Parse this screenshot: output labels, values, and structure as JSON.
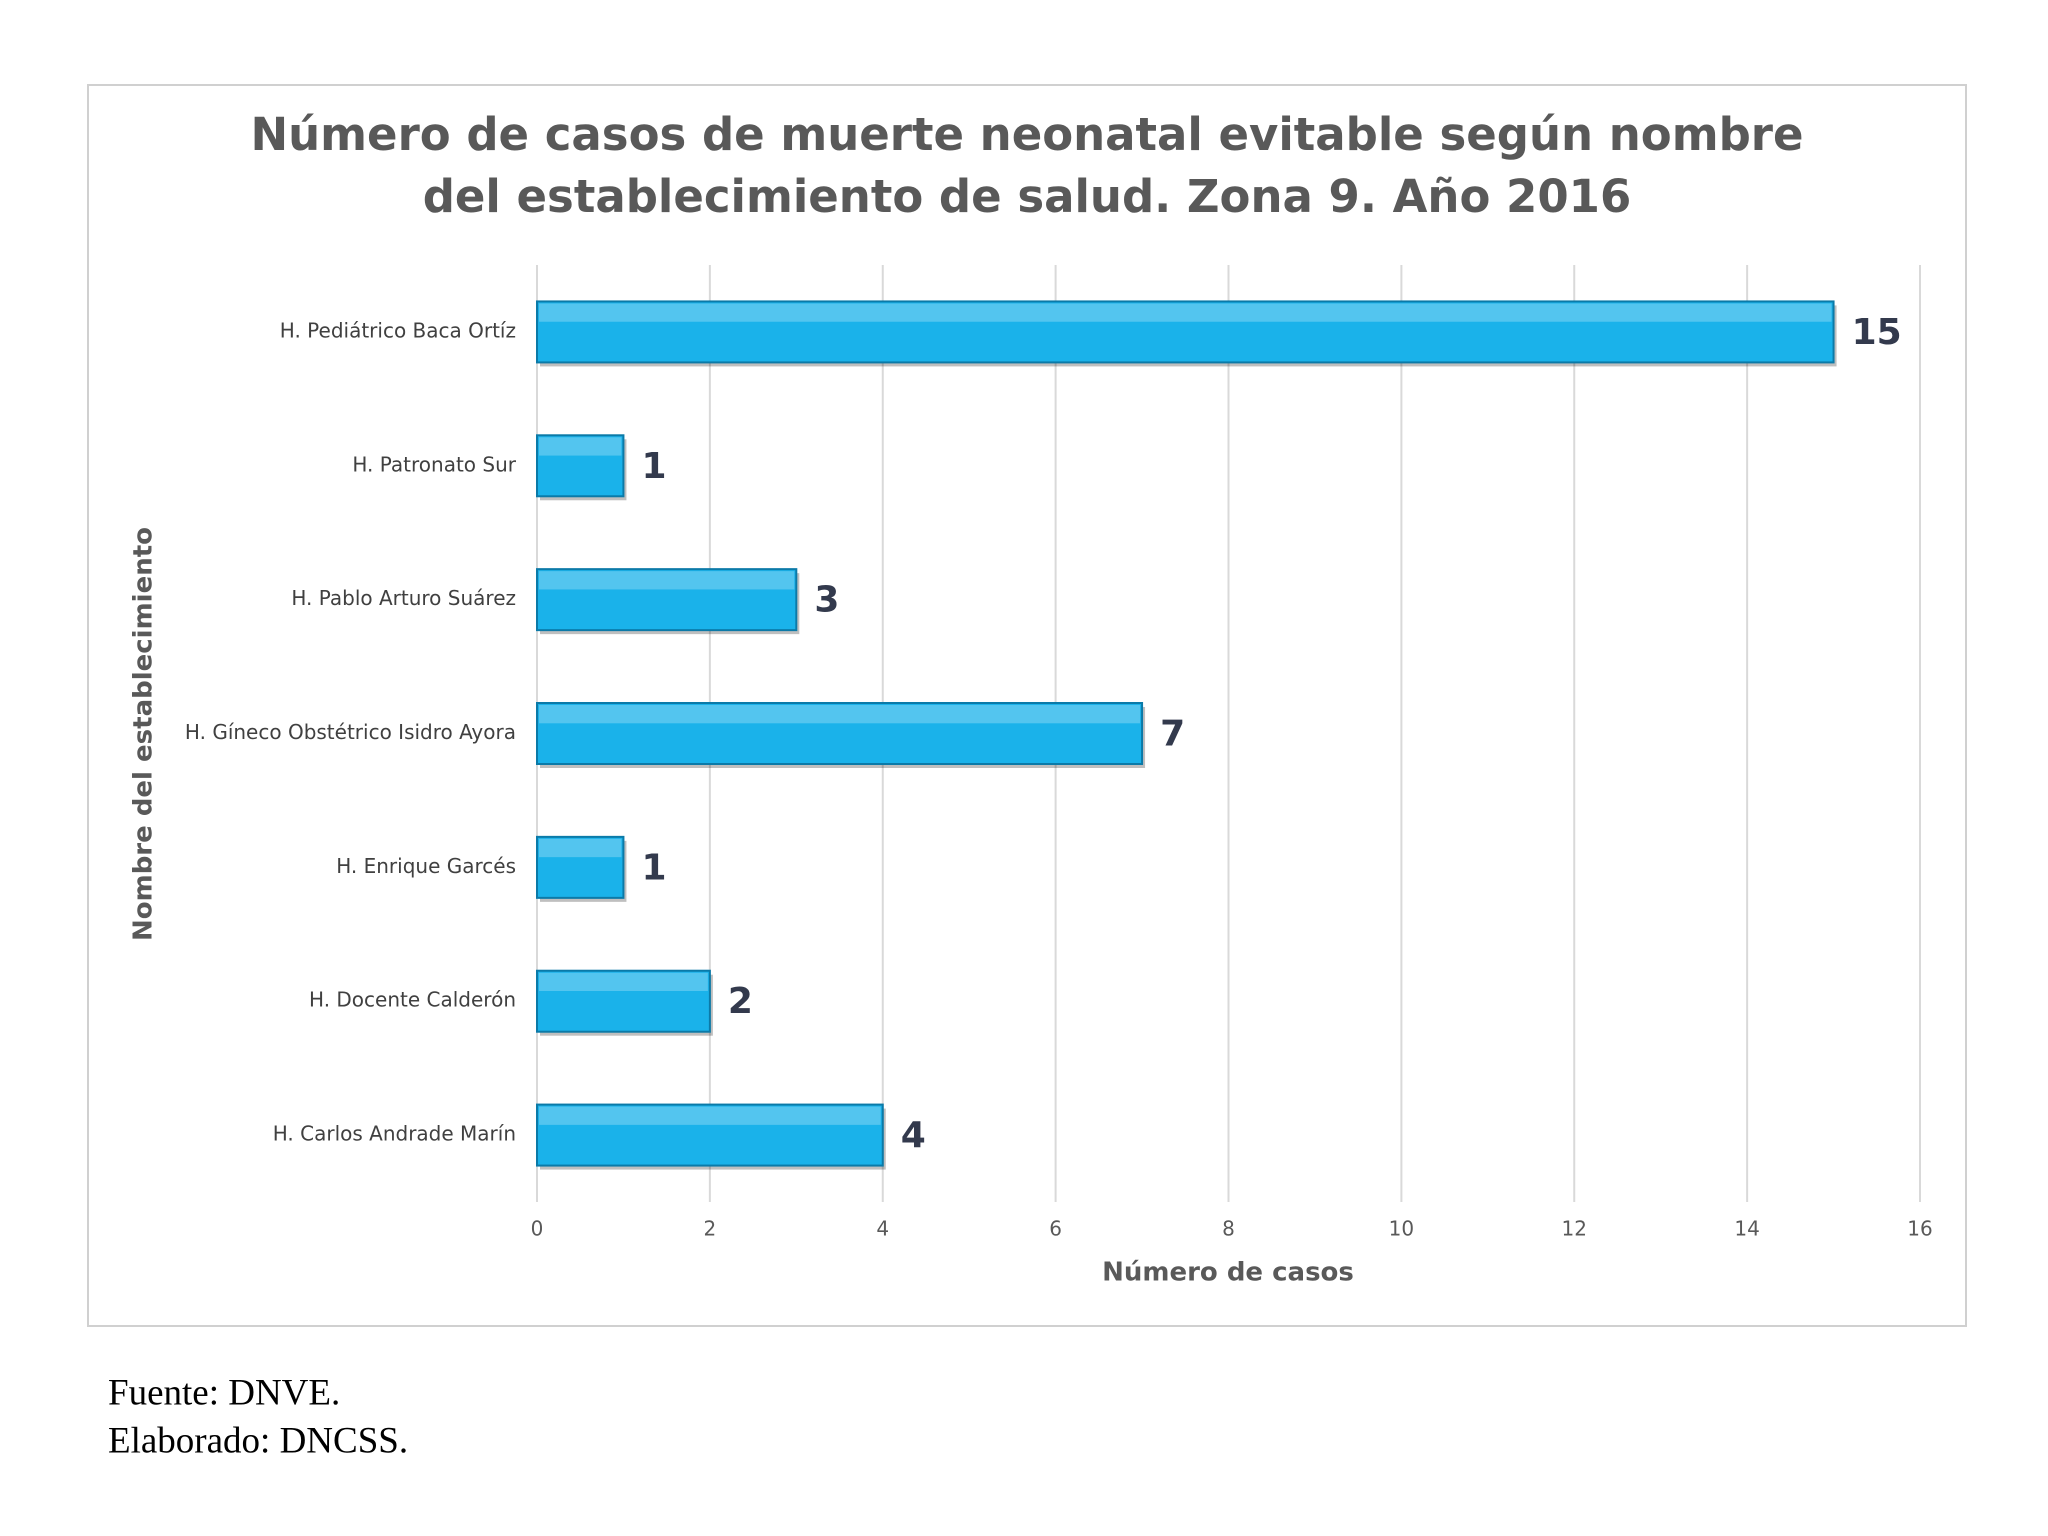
{
  "chart_data": {
    "type": "hbar",
    "title": [
      "Número de casos de muerte neonatal evitable según nombre",
      "del establecimiento de salud. Zona 9. Año 2016"
    ],
    "xlabel": "Número de casos",
    "ylabel": "Nombre del establecimiento",
    "categories": [
      "H. Pediátrico Baca Ortíz",
      "H. Patronato Sur",
      "H. Pablo Arturo Suárez",
      "H. Gíneco Obstétrico Isidro Ayora",
      "H. Enrique Garcés",
      "H. Docente Calderón",
      "H. Carlos Andrade Marín"
    ],
    "values": [
      15,
      1,
      3,
      7,
      1,
      2,
      4
    ],
    "color": "#1ab2ea",
    "xlim": [
      0,
      16
    ],
    "xticks": [
      0,
      2,
      4,
      6,
      8,
      10,
      12,
      14,
      16
    ],
    "grid": true,
    "footer": [
      "Fuente: DNVE.",
      "Elaborado: DNCSS."
    ]
  }
}
